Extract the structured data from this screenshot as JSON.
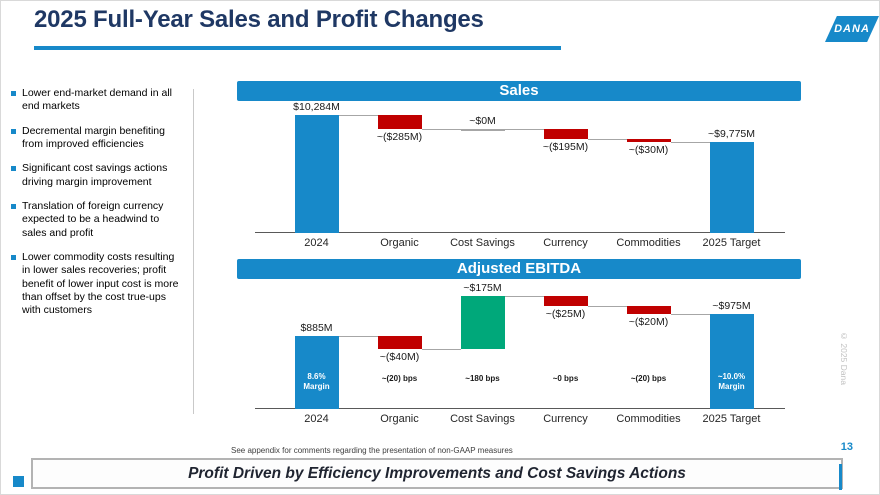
{
  "slide": {
    "title": "2025 Full-Year Sales and Profit Changes",
    "logo_text": "DANA",
    "page_number": "13",
    "footnote": "See appendix for comments regarding the presentation of non-GAAP measures",
    "banner": "Profit Driven by Efficiency Improvements and Cost Savings Actions",
    "copyright": "© 2025 Dana"
  },
  "bullets": [
    "Lower end-market demand in all end markets",
    "Decremental margin benefiting from improved efficiencies",
    "Significant cost savings actions driving margin improvement",
    "Translation of foreign currency expected to be a headwind to sales and profit",
    "Lower commodity costs resulting in lower sales recoveries; profit benefit of lower input cost is more than offset by the cost true-ups with customers"
  ],
  "colors": {
    "accent_blue": "#1789C9",
    "bar_blue": "#1789C9",
    "bar_red": "#C00000",
    "bar_green": "#00A87A",
    "navy": "#1F3864",
    "connector_gray": "#A6A6A6"
  },
  "chart_data": [
    {
      "type": "bar",
      "subtype": "waterfall",
      "title": "Sales",
      "categories": [
        "2024",
        "Organic",
        "Cost Savings",
        "Currency",
        "Commodities",
        "2025 Target"
      ],
      "values": [
        10284,
        -285,
        0,
        -195,
        -30,
        9775
      ],
      "labels": [
        "$10,284M",
        "~($285M)",
        "~$0M",
        "~($195M)",
        "~($30M)",
        "~$9,775M"
      ],
      "bar_roles": [
        "total",
        "decrease",
        "zero",
        "decrease",
        "decrease",
        "total"
      ],
      "xlabel": "",
      "ylabel": "",
      "legend": "none",
      "grid": "off"
    },
    {
      "type": "bar",
      "subtype": "waterfall",
      "title": "Adjusted EBITDA",
      "categories": [
        "2024",
        "Organic",
        "Cost Savings",
        "Currency",
        "Commodities",
        "2025 Target"
      ],
      "values": [
        885,
        -40,
        175,
        -25,
        -20,
        975
      ],
      "labels": [
        "$885M",
        "~($40M)",
        "~$175M",
        "~($25M)",
        "~($20M)",
        "~$975M"
      ],
      "bar_roles": [
        "total",
        "decrease",
        "increase",
        "decrease",
        "decrease",
        "total"
      ],
      "bps_labels": [
        "",
        "~(20) bps",
        "~180 bps",
        "~0 bps",
        "~(20) bps",
        ""
      ],
      "margin_labels": [
        "8.6% Margin",
        "",
        "",
        "",
        "",
        "~10.0% Margin"
      ],
      "xlabel": "",
      "ylabel": "",
      "legend": "none",
      "grid": "off"
    }
  ]
}
